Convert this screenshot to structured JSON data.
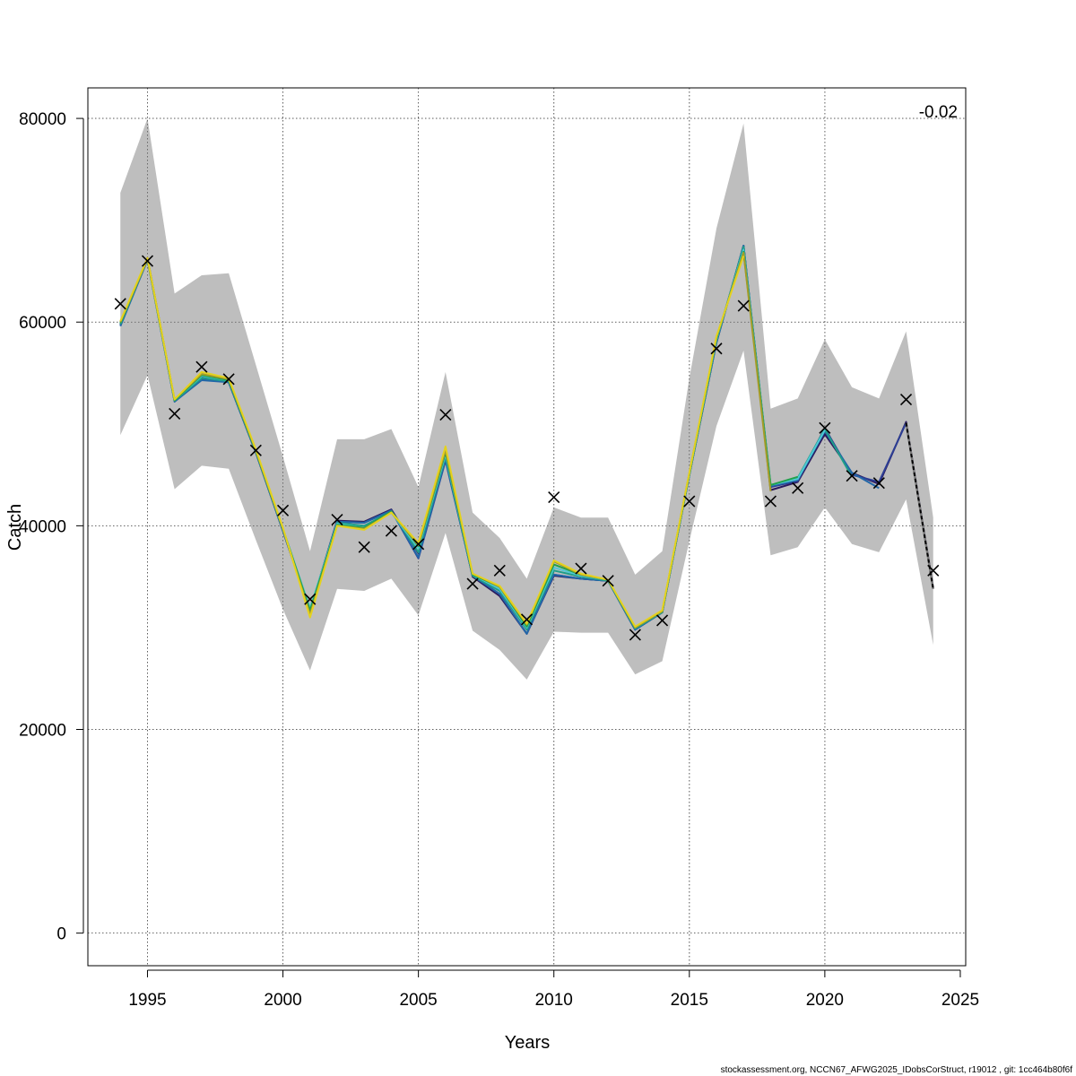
{
  "chart_data": {
    "type": "line",
    "xlabel": "Years",
    "ylabel": "Catch",
    "annotation": "-0.02",
    "footer": "stockassessment.org, NCCN67_AFWG2025_IDobsCorStruct, r19012 , git: 1cc464b80f6f",
    "xlim": [
      1992.8,
      2025.2
    ],
    "ylim": [
      -3200,
      83000
    ],
    "xticks": [
      1995,
      2000,
      2005,
      2010,
      2015,
      2020,
      2025
    ],
    "yticks": [
      0,
      20000,
      40000,
      60000,
      80000
    ],
    "grid": true,
    "band_color": "#bebebe",
    "band": {
      "x": [
        1994,
        1995,
        1996,
        1997,
        1998,
        1999,
        2000,
        2001,
        2002,
        2003,
        2004,
        2005,
        2006,
        2007,
        2008,
        2009,
        2010,
        2011,
        2012,
        2013,
        2014,
        2015,
        2016,
        2017,
        2018,
        2019,
        2020,
        2021,
        2022,
        2023,
        2024
      ],
      "upper": [
        72700,
        80000,
        62800,
        64600,
        64800,
        55800,
        46800,
        37500,
        48500,
        48500,
        49500,
        43800,
        55100,
        41300,
        38800,
        34800,
        41800,
        40800,
        40800,
        35200,
        37500,
        54500,
        69200,
        79500,
        51500,
        52500,
        58300,
        53600,
        52500,
        59100,
        40800
      ],
      "lower": [
        48900,
        54800,
        43600,
        45900,
        45600,
        38600,
        31800,
        25800,
        33800,
        33600,
        34800,
        31200,
        39300,
        29700,
        27800,
        24900,
        29600,
        29500,
        29500,
        25400,
        26700,
        38500,
        49800,
        57200,
        37100,
        37900,
        41800,
        38200,
        37400,
        42600,
        28300
      ]
    },
    "observations": {
      "x": [
        1994,
        1995,
        1996,
        1997,
        1998,
        1999,
        2000,
        2001,
        2002,
        2003,
        2004,
        2005,
        2006,
        2007,
        2008,
        2009,
        2010,
        2011,
        2012,
        2013,
        2014,
        2015,
        2016,
        2017,
        2018,
        2019,
        2020,
        2021,
        2022,
        2023,
        2024
      ],
      "y": [
        61800,
        66000,
        51000,
        55600,
        54400,
        47400,
        41500,
        32800,
        40600,
        37900,
        39500,
        38200,
        50900,
        34300,
        35600,
        30800,
        42800,
        35800,
        34600,
        29300,
        30700,
        42400,
        57400,
        61600,
        42400,
        43700,
        49600,
        44900,
        44200,
        52400,
        35600
      ]
    },
    "series": [
      {
        "color": "#2b1a5e",
        "x": [
          1994,
          1995,
          1996,
          1997,
          1998,
          1999,
          2000,
          2001,
          2002,
          2003,
          2004,
          2005,
          2006,
          2007,
          2008,
          2009,
          2010,
          2011,
          2012,
          2013,
          2014,
          2015,
          2016,
          2017,
          2018,
          2019,
          2020,
          2021,
          2022,
          2023,
          2024
        ],
        "y": [
          59800,
          66300,
          52300,
          54600,
          54100,
          47200,
          39500,
          31700,
          40500,
          40400,
          41600,
          37300,
          46900,
          35000,
          33100,
          29400,
          35100,
          34800,
          34600,
          29800,
          31500,
          45000,
          58000,
          67500,
          43500,
          44300,
          49000,
          45200,
          44100,
          50200,
          33900
        ]
      },
      {
        "color": "#2c3e94",
        "x": [
          1994,
          1995,
          1996,
          1997,
          1998,
          1999,
          2000,
          2001,
          2002,
          2003,
          2004,
          2005,
          2006,
          2007,
          2008,
          2009,
          2010,
          2011,
          2012,
          2013,
          2014,
          2015,
          2016,
          2017,
          2018,
          2019,
          2020,
          2021,
          2022,
          2023
        ],
        "y": [
          59700,
          66200,
          52200,
          54400,
          54100,
          47200,
          39500,
          31700,
          40400,
          40300,
          41500,
          36800,
          46400,
          35100,
          33300,
          29400,
          35200,
          34800,
          34600,
          29800,
          31500,
          45000,
          58000,
          67500,
          43800,
          44400,
          49600,
          45000,
          44300,
          50100
        ]
      },
      {
        "color": "#2167a8",
        "x": [
          1994,
          1995,
          1996,
          1997,
          1998,
          1999,
          2000,
          2001,
          2002,
          2003,
          2004,
          2005,
          2006,
          2007,
          2008,
          2009,
          2010,
          2011,
          2012,
          2013,
          2014,
          2015,
          2016,
          2017,
          2018,
          2019,
          2020,
          2021,
          2022
        ],
        "y": [
          59600,
          66100,
          52200,
          54300,
          54100,
          47200,
          39500,
          31700,
          40400,
          40300,
          41500,
          36900,
          46500,
          35100,
          33300,
          29400,
          35200,
          34800,
          34600,
          29800,
          31500,
          45000,
          58000,
          67500,
          43900,
          44500,
          49300,
          45200,
          43700
        ]
      },
      {
        "color": "#1f9e89",
        "x": [
          1994,
          1995,
          1996,
          1997,
          1998,
          1999,
          2000,
          2001,
          2002,
          2003,
          2004,
          2005,
          2006,
          2007,
          2008,
          2009,
          2010,
          2011,
          2012,
          2013,
          2014,
          2015,
          2016,
          2017,
          2018,
          2019,
          2020,
          2021
        ],
        "y": [
          59800,
          66200,
          52300,
          54500,
          54200,
          47300,
          39600,
          31800,
          40300,
          40000,
          41400,
          37400,
          46800,
          35100,
          33600,
          29800,
          35600,
          35000,
          34600,
          29900,
          31500,
          45000,
          58200,
          67400,
          44000,
          44700,
          49500,
          44800
        ]
      },
      {
        "color": "#4ec8d4",
        "x": [
          1994,
          1995,
          1996,
          1997,
          1998,
          1999,
          2000,
          2001,
          2002,
          2003,
          2004,
          2005,
          2006,
          2007,
          2008,
          2009,
          2010,
          2011,
          2012,
          2013,
          2014,
          2015,
          2016,
          2017,
          2018,
          2019,
          2020
        ],
        "y": [
          59900,
          66200,
          52300,
          54700,
          54300,
          47300,
          39700,
          31900,
          40200,
          39800,
          41300,
          37800,
          47000,
          35200,
          33800,
          30000,
          35900,
          35100,
          34700,
          30000,
          31600,
          45100,
          58300,
          67100,
          44000,
          44600,
          49400
        ]
      },
      {
        "color": "#21a14d",
        "x": [
          1994,
          1995,
          1996,
          1997,
          1998,
          1999,
          2000,
          2001,
          2002,
          2003,
          2004,
          2005,
          2006,
          2007,
          2008,
          2009,
          2010,
          2011,
          2012,
          2013,
          2014,
          2015,
          2016,
          2017,
          2018,
          2019
        ],
        "y": [
          59900,
          66200,
          52300,
          54800,
          54300,
          47300,
          39700,
          31700,
          40100,
          39800,
          41400,
          38000,
          47200,
          35200,
          34000,
          30100,
          36200,
          35200,
          34700,
          30000,
          31600,
          45100,
          58400,
          66900,
          44000,
          44800
        ]
      },
      {
        "color": "#a59c28",
        "x": [
          1994,
          1995,
          1996,
          1997,
          1998,
          1999,
          2000,
          2001,
          2002,
          2003,
          2004,
          2005,
          2006,
          2007,
          2008,
          2009,
          2010,
          2011,
          2012,
          2013,
          2014,
          2015,
          2016,
          2017,
          2018
        ],
        "y": [
          60000,
          66200,
          52400,
          54900,
          54400,
          47400,
          39700,
          31300,
          40000,
          39700,
          41300,
          38100,
          47400,
          35300,
          34000,
          30300,
          36500,
          35200,
          34700,
          30000,
          31600,
          45200,
          58500,
          66800,
          43400
        ]
      },
      {
        "color": "#e4d21e",
        "x": [
          1994,
          1995,
          1996,
          1997,
          1998,
          1999,
          2000,
          2001,
          2002,
          2003,
          2004,
          2005,
          2006,
          2007,
          2008,
          2009,
          2010,
          2011,
          2012,
          2013,
          2014,
          2015,
          2016,
          2017
        ],
        "y": [
          60100,
          66300,
          52400,
          55100,
          54500,
          47500,
          39800,
          31000,
          40000,
          39600,
          41300,
          38300,
          47800,
          35300,
          34100,
          30400,
          36600,
          35300,
          34700,
          30100,
          31700,
          45200,
          58600,
          66500
        ]
      },
      {
        "color": "#000000",
        "dashed": true,
        "x": [
          2023,
          2024
        ],
        "y": [
          50100,
          33800
        ]
      }
    ]
  }
}
